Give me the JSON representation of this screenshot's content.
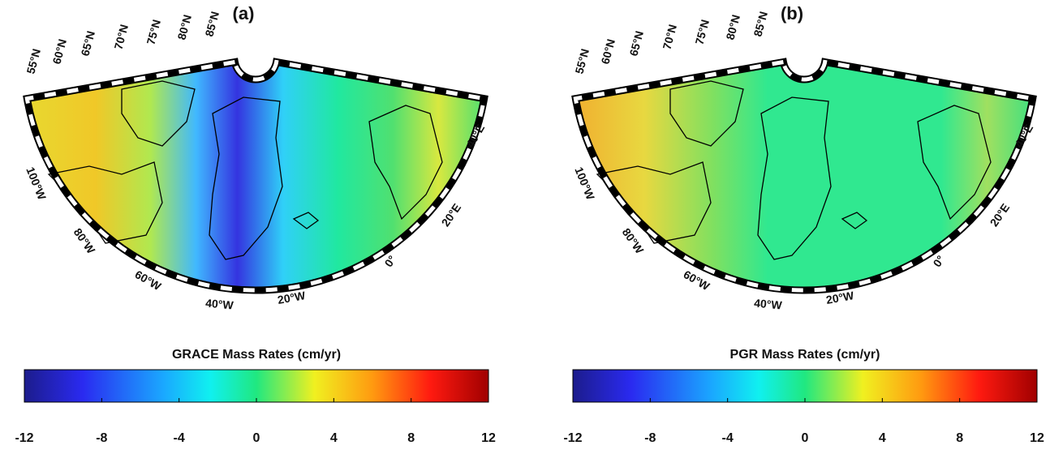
{
  "panels": [
    {
      "label": "(a)",
      "lat_labels": [
        "55°N",
        "60°N",
        "65°N",
        "70°N",
        "75°N",
        "80°N",
        "85°N"
      ],
      "lon_labels": [
        "100°W",
        "80°W",
        "60°W",
        "40°W",
        "20°W",
        "0°",
        "20°E",
        "40°E"
      ],
      "colorbar": {
        "title": "GRACE Mass Rates (cm/yr)",
        "lim": [
          -12,
          12
        ],
        "ticks": [
          -12,
          -8,
          -4,
          0,
          4,
          8,
          12
        ]
      }
    },
    {
      "label": "(b)",
      "lat_labels": [
        "55°N",
        "60°N",
        "65°N",
        "70°N",
        "75°N",
        "80°N",
        "85°N"
      ],
      "lon_labels": [
        "100°W",
        "80°W",
        "60°W",
        "40°W",
        "20°W",
        "0°",
        "20°E",
        "40°E"
      ],
      "colorbar": {
        "title": "PGR Mass Rates (cm/yr)",
        "lim": [
          -12,
          12
        ],
        "ticks": [
          -12,
          -8,
          -4,
          0,
          4,
          8,
          12
        ]
      }
    }
  ]
}
